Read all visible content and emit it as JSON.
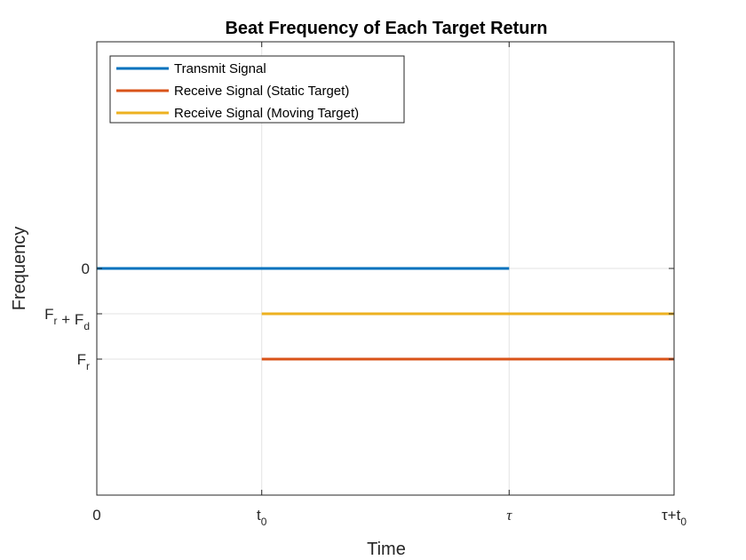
{
  "chart_data": {
    "type": "line",
    "title": "Beat Frequency of Each Target Return",
    "xlabel": "Time",
    "ylabel": "Frequency",
    "xlim": [
      0,
      1.4
    ],
    "ylim": [
      -5,
      5
    ],
    "grid": true,
    "legend_position": "top-left",
    "x_ticks": [
      {
        "value": 0,
        "main": "0",
        "sub": "",
        "serif": false
      },
      {
        "value": 0.4,
        "main": "t",
        "sub": "0",
        "serif": false
      },
      {
        "value": 1.0,
        "main": "τ",
        "sub": "",
        "serif": true
      },
      {
        "value": 1.4,
        "main": "τ+t",
        "sub": "0",
        "serif": false
      }
    ],
    "y_ticks": [
      {
        "value": 0,
        "parts": [
          [
            "0",
            ""
          ]
        ]
      },
      {
        "value": -1,
        "parts": [
          [
            "F",
            "r"
          ],
          [
            " + F",
            "d"
          ]
        ]
      },
      {
        "value": -2,
        "parts": [
          [
            "F",
            "r"
          ]
        ]
      }
    ],
    "series": [
      {
        "name": "Transmit Signal",
        "color": "#0072BD",
        "x": [
          0,
          1.0
        ],
        "y": [
          0,
          0
        ]
      },
      {
        "name": "Receive Signal (Static Target)",
        "color": "#D95319",
        "x": [
          0.4,
          1.4
        ],
        "y": [
          -2,
          -2
        ]
      },
      {
        "name": "Receive Signal (Moving Target)",
        "color": "#EDB120",
        "x": [
          0.4,
          1.4
        ],
        "y": [
          -1,
          -1
        ]
      }
    ]
  }
}
